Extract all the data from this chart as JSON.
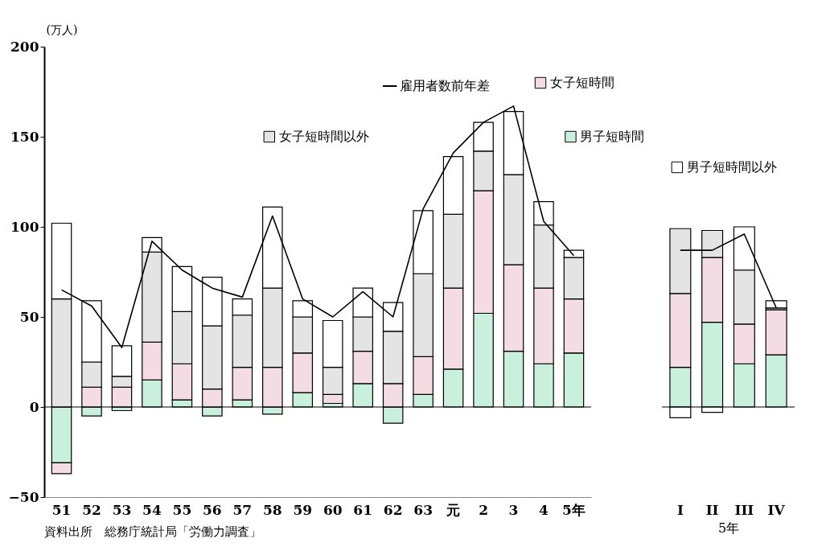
{
  "chart_data": [
    {
      "type": "bar",
      "stacked": true,
      "legend": "top",
      "ylabel": "(万人)",
      "categories": [
        "51",
        "52",
        "53",
        "54",
        "55",
        "56",
        "57",
        "58",
        "59",
        "60",
        "61",
        "62",
        "63",
        "元",
        "2",
        "3",
        "4",
        "5年"
      ],
      "ylim": [
        -50,
        200
      ],
      "yticks": [
        -50,
        0,
        50,
        100,
        150,
        200
      ],
      "ref_lines": [
        {
          "axis": "y",
          "value": 0
        }
      ],
      "annotations": [
        "資料出所　総務庁統計局「労働力調査」"
      ],
      "series": [
        {
          "name": "男子短時間",
          "color": "#c8f0dc",
          "values": [
            -31,
            -5,
            -2,
            15,
            4,
            -5,
            4,
            -4,
            8,
            2,
            13,
            -9,
            7,
            21,
            52,
            31,
            24,
            30
          ]
        },
        {
          "name": "女子短時間",
          "color": "#f3dce3",
          "values": [
            -6,
            11,
            11,
            21,
            20,
            10,
            18,
            22,
            22,
            5,
            18,
            13,
            21,
            45,
            68,
            48,
            42,
            30
          ]
        },
        {
          "name": "女子短時間以外",
          "color": "#e4e4e4",
          "values": [
            60,
            14,
            6,
            50,
            29,
            35,
            29,
            44,
            20,
            15,
            19,
            29,
            46,
            41,
            22,
            50,
            35,
            23
          ]
        },
        {
          "color": "#ffffff",
          "values": [
            42,
            34,
            17,
            8,
            25,
            27,
            9,
            45,
            9,
            26,
            16,
            16,
            35,
            32,
            16,
            35,
            13,
            4
          ]
        },
        {
          "name": "雇用者数前年差",
          "type": "line",
          "color": "#000000",
          "values": [
            65,
            56,
            33,
            92,
            76,
            66,
            61,
            106,
            60,
            50,
            64,
            50,
            110,
            141,
            158,
            167,
            103,
            84
          ]
        }
      ]
    },
    {
      "type": "bar",
      "stacked": true,
      "legend": "top",
      "xlabel": "5年",
      "categories": [
        "I",
        "II",
        "III",
        "IV"
      ],
      "tick_labels": "x",
      "ylim": [
        -50,
        200
      ],
      "yticks": [
        -50,
        0,
        50,
        100,
        150,
        200
      ],
      "ref_lines": [
        {
          "axis": "y",
          "value": 0
        }
      ],
      "series": [
        {
          "color": "#c8f0dc",
          "values": [
            22,
            47,
            24,
            29
          ]
        },
        {
          "color": "#f3dce3",
          "values": [
            41,
            36,
            22,
            25
          ]
        },
        {
          "color": "#e4e4e4",
          "values": [
            36,
            15,
            30,
            1
          ]
        },
        {
          "name": "男子短時間以外",
          "color": "#ffffff",
          "values": [
            -6,
            -3,
            24,
            4
          ]
        },
        {
          "type": "line",
          "color": "#000000",
          "values": [
            87,
            87,
            96,
            55
          ]
        }
      ]
    }
  ]
}
